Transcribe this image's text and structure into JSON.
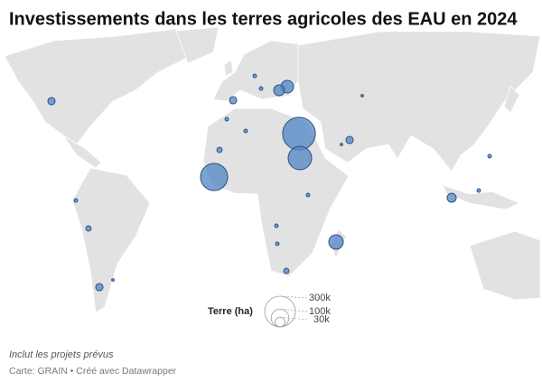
{
  "title": "Investissements dans les terres agricoles des EAU en 2024",
  "map": {
    "bubbles": [
      17000,
      4000,
      4000,
      51000,
      37000,
      17000,
      4000,
      4000,
      340000,
      175000,
      234000,
      9000,
      17000,
      2000,
      2000,
      4000,
      26000,
      4000,
      4000,
      4000,
      4000,
      9000,
      66000,
      4000,
      9000,
      17000,
      2000
    ]
  },
  "legend": {
    "title": "Terre (ha)",
    "ticks": [
      {
        "value": 300000,
        "label": "300k"
      },
      {
        "value": 100000,
        "label": "100k"
      },
      {
        "value": 30000,
        "label": "30k"
      }
    ]
  },
  "note": "Inclut les projets prévus",
  "source": "Carte: GRAIN • Créé avec Datawrapper"
}
